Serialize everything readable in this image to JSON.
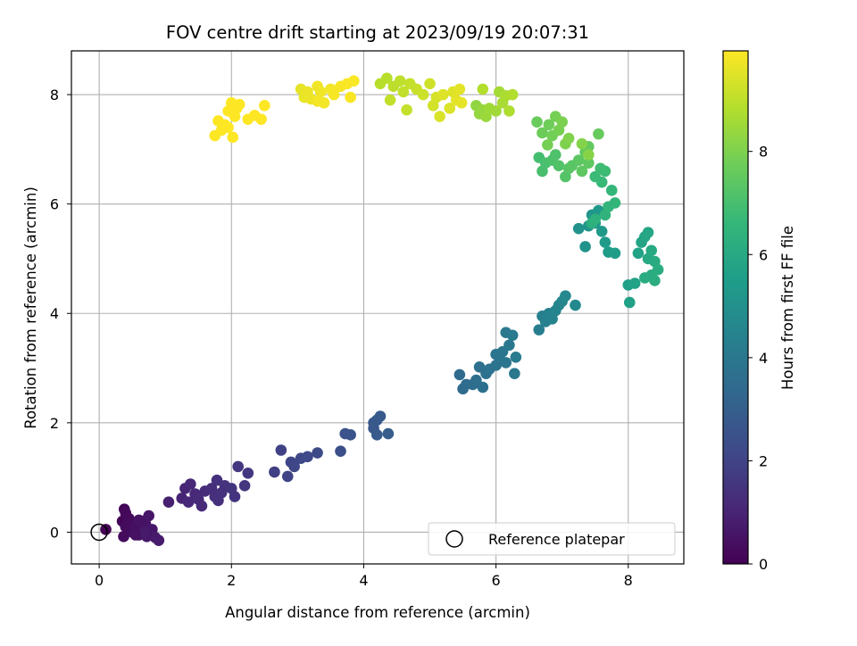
{
  "chart_data": {
    "type": "scatter",
    "title": "FOV centre drift starting at 2023/09/19 20:07:31",
    "xlabel": "Angular distance from reference (arcmin)",
    "ylabel": "Rotation from reference (arcmin)",
    "xlim": [
      -0.42,
      8.84
    ],
    "ylim": [
      -0.58,
      8.8
    ],
    "xticks": [
      0,
      2,
      4,
      6,
      8
    ],
    "yticks": [
      0,
      2,
      4,
      6,
      8
    ],
    "grid": true,
    "colormap": "viridis",
    "colorbar": {
      "label": "Hours from first FF file",
      "range": [
        0,
        9.95
      ],
      "ticks": [
        0,
        2,
        4,
        6,
        8
      ]
    },
    "legend": {
      "position": "lower-right",
      "entries": [
        {
          "label": "Reference platepar",
          "marker": "open-circle"
        }
      ]
    },
    "reference_point": {
      "x": 0,
      "y": 0
    },
    "series": [
      {
        "columns": [
          "x",
          "y",
          "hours"
        ],
        "points": [
          [
            0.1,
            0.05,
            0.0
          ],
          [
            0.35,
            0.2,
            0.1
          ],
          [
            0.38,
            0.42,
            0.15
          ],
          [
            0.4,
            0.35,
            0.2
          ],
          [
            0.45,
            0.25,
            0.25
          ],
          [
            0.4,
            0.1,
            0.3
          ],
          [
            0.37,
            -0.08,
            0.3
          ],
          [
            0.5,
            0.0,
            0.35
          ],
          [
            0.55,
            0.1,
            0.4
          ],
          [
            0.6,
            -0.05,
            0.45
          ],
          [
            0.65,
            0.2,
            0.5
          ],
          [
            0.7,
            0.15,
            0.55
          ],
          [
            0.75,
            0.3,
            0.6
          ],
          [
            0.8,
            0.05,
            0.6
          ],
          [
            0.72,
            -0.08,
            0.65
          ],
          [
            0.85,
            -0.1,
            0.7
          ],
          [
            0.9,
            -0.15,
            0.75
          ],
          [
            0.68,
            0.0,
            0.7
          ],
          [
            0.6,
            0.22,
            0.5
          ],
          [
            0.55,
            -0.05,
            0.45
          ],
          [
            1.05,
            0.55,
            0.9
          ],
          [
            1.25,
            0.62,
            1.0
          ],
          [
            1.3,
            0.8,
            1.05
          ],
          [
            1.38,
            0.88,
            1.1
          ],
          [
            1.35,
            0.55,
            1.1
          ],
          [
            1.45,
            0.7,
            1.15
          ],
          [
            1.5,
            0.6,
            1.2
          ],
          [
            1.55,
            0.48,
            1.2
          ],
          [
            1.6,
            0.75,
            1.25
          ],
          [
            1.7,
            0.8,
            1.3
          ],
          [
            1.75,
            0.65,
            1.35
          ],
          [
            1.8,
            0.58,
            1.35
          ],
          [
            1.78,
            0.95,
            1.4
          ],
          [
            1.9,
            0.85,
            1.45
          ],
          [
            2.0,
            0.8,
            1.5
          ],
          [
            2.05,
            0.65,
            1.5
          ],
          [
            2.1,
            1.2,
            1.55
          ],
          [
            2.2,
            0.85,
            1.6
          ],
          [
            2.25,
            1.08,
            1.6
          ],
          [
            1.85,
            0.72,
            1.4
          ],
          [
            2.65,
            1.1,
            1.9
          ],
          [
            2.75,
            1.5,
            1.95
          ],
          [
            2.85,
            1.02,
            2.0
          ],
          [
            2.9,
            1.28,
            2.05
          ],
          [
            2.95,
            1.2,
            2.1
          ],
          [
            3.05,
            1.35,
            2.15
          ],
          [
            3.15,
            1.38,
            2.2
          ],
          [
            3.3,
            1.45,
            2.25
          ],
          [
            3.65,
            1.48,
            2.4
          ],
          [
            3.72,
            1.8,
            2.5
          ],
          [
            3.8,
            1.78,
            2.55
          ],
          [
            4.15,
            1.9,
            2.7
          ],
          [
            4.2,
            2.05,
            2.75
          ],
          [
            4.25,
            2.12,
            2.8
          ],
          [
            4.2,
            1.78,
            2.85
          ],
          [
            4.37,
            1.8,
            2.9
          ],
          [
            4.15,
            2.0,
            2.75
          ],
          [
            5.45,
            2.88,
            3.4
          ],
          [
            5.5,
            2.62,
            3.45
          ],
          [
            5.55,
            2.7,
            3.5
          ],
          [
            5.65,
            2.7,
            3.55
          ],
          [
            5.7,
            2.78,
            3.6
          ],
          [
            5.75,
            3.02,
            3.65
          ],
          [
            5.8,
            2.65,
            3.6
          ],
          [
            5.85,
            2.9,
            3.7
          ],
          [
            5.9,
            2.98,
            3.75
          ],
          [
            6.0,
            3.05,
            3.8
          ],
          [
            6.05,
            3.2,
            3.85
          ],
          [
            6.1,
            3.3,
            3.9
          ],
          [
            6.15,
            3.1,
            3.9
          ],
          [
            6.2,
            3.42,
            4.0
          ],
          [
            6.15,
            3.65,
            4.05
          ],
          [
            6.25,
            3.6,
            4.1
          ],
          [
            6.3,
            3.2,
            4.1
          ],
          [
            6.28,
            2.9,
            4.0
          ],
          [
            6.0,
            3.25,
            3.85
          ],
          [
            6.65,
            3.7,
            4.25
          ],
          [
            6.7,
            3.95,
            4.3
          ],
          [
            6.75,
            3.85,
            4.35
          ],
          [
            6.8,
            4.0,
            4.4
          ],
          [
            6.85,
            3.9,
            4.45
          ],
          [
            6.9,
            4.05,
            4.5
          ],
          [
            6.95,
            4.15,
            4.55
          ],
          [
            7.0,
            4.22,
            4.6
          ],
          [
            7.05,
            4.32,
            4.65
          ],
          [
            7.2,
            4.15,
            4.7
          ],
          [
            7.25,
            5.55,
            5.05
          ],
          [
            7.35,
            5.22,
            5.1
          ],
          [
            7.4,
            5.6,
            5.15
          ],
          [
            7.45,
            5.8,
            5.2
          ],
          [
            7.5,
            5.65,
            5.25
          ],
          [
            7.55,
            5.88,
            5.3
          ],
          [
            7.6,
            5.5,
            5.35
          ],
          [
            7.65,
            5.3,
            5.4
          ],
          [
            7.7,
            5.12,
            5.45
          ],
          [
            7.8,
            5.1,
            5.5
          ],
          [
            8.0,
            4.52,
            5.6
          ],
          [
            8.02,
            4.2,
            5.65
          ],
          [
            8.1,
            4.55,
            5.7
          ],
          [
            8.15,
            5.1,
            5.75
          ],
          [
            8.2,
            5.3,
            5.8
          ],
          [
            8.25,
            5.4,
            5.85
          ],
          [
            8.3,
            5.48,
            5.9
          ],
          [
            8.3,
            5.0,
            5.95
          ],
          [
            8.35,
            5.15,
            6.0
          ],
          [
            8.4,
            4.95,
            6.05
          ],
          [
            8.35,
            4.7,
            6.1
          ],
          [
            8.45,
            4.8,
            6.15
          ],
          [
            8.4,
            4.6,
            6.2
          ],
          [
            8.25,
            4.65,
            6.1
          ],
          [
            7.45,
            5.65,
            6.3
          ],
          [
            7.5,
            5.72,
            6.35
          ],
          [
            7.65,
            5.8,
            6.4
          ],
          [
            7.7,
            5.95,
            6.5
          ],
          [
            7.8,
            6.02,
            6.55
          ],
          [
            7.75,
            6.25,
            6.6
          ],
          [
            7.6,
            6.4,
            6.7
          ],
          [
            7.5,
            6.5,
            6.75
          ],
          [
            7.65,
            6.6,
            6.8
          ],
          [
            7.58,
            6.65,
            6.85
          ],
          [
            6.65,
            6.85,
            6.95
          ],
          [
            6.7,
            6.6,
            7.0
          ],
          [
            6.75,
            6.75,
            7.05
          ],
          [
            6.85,
            6.8,
            7.1
          ],
          [
            6.9,
            6.9,
            7.15
          ],
          [
            6.95,
            6.7,
            7.2
          ],
          [
            7.05,
            6.5,
            7.25
          ],
          [
            7.1,
            6.65,
            7.3
          ],
          [
            7.15,
            6.7,
            7.35
          ],
          [
            7.25,
            6.8,
            7.4
          ],
          [
            7.3,
            6.6,
            7.45
          ],
          [
            7.35,
            6.95,
            7.5
          ],
          [
            7.4,
            7.05,
            7.55
          ],
          [
            7.55,
            7.28,
            7.6
          ],
          [
            7.4,
            6.75,
            7.45
          ],
          [
            6.62,
            7.5,
            7.65
          ],
          [
            6.7,
            7.3,
            7.7
          ],
          [
            6.8,
            7.45,
            7.75
          ],
          [
            6.85,
            7.25,
            7.8
          ],
          [
            6.9,
            7.6,
            7.85
          ],
          [
            6.95,
            7.35,
            7.9
          ],
          [
            7.0,
            7.5,
            7.95
          ],
          [
            7.05,
            7.1,
            8.0
          ],
          [
            7.1,
            7.2,
            8.05
          ],
          [
            7.3,
            7.1,
            8.1
          ],
          [
            7.4,
            6.9,
            8.15
          ],
          [
            6.78,
            7.08,
            7.85
          ],
          [
            5.7,
            7.8,
            8.3
          ],
          [
            5.75,
            7.65,
            8.35
          ],
          [
            5.8,
            7.72,
            8.4
          ],
          [
            5.85,
            7.6,
            8.45
          ],
          [
            5.9,
            7.75,
            8.5
          ],
          [
            6.0,
            7.7,
            8.55
          ],
          [
            6.05,
            8.05,
            8.6
          ],
          [
            6.1,
            7.85,
            8.65
          ],
          [
            6.15,
            7.98,
            8.7
          ],
          [
            6.2,
            7.7,
            8.75
          ],
          [
            6.25,
            8.0,
            8.8
          ],
          [
            5.8,
            8.1,
            8.85
          ],
          [
            4.35,
            8.3,
            8.9
          ],
          [
            4.45,
            8.15,
            8.95
          ],
          [
            4.55,
            8.25,
            9.0
          ],
          [
            4.6,
            8.05,
            9.05
          ],
          [
            4.65,
            7.72,
            9.1
          ],
          [
            4.7,
            8.2,
            9.1
          ],
          [
            4.8,
            8.1,
            9.15
          ],
          [
            4.9,
            8.0,
            9.2
          ],
          [
            5.0,
            8.2,
            9.25
          ],
          [
            5.05,
            7.8,
            9.3
          ],
          [
            5.1,
            7.95,
            9.35
          ],
          [
            5.15,
            7.6,
            9.4
          ],
          [
            5.2,
            8.0,
            9.45
          ],
          [
            5.3,
            7.75,
            9.45
          ],
          [
            5.35,
            8.05,
            9.5
          ],
          [
            5.4,
            7.9,
            9.55
          ],
          [
            5.45,
            8.1,
            9.55
          ],
          [
            5.48,
            7.85,
            9.6
          ],
          [
            4.25,
            8.2,
            8.9
          ],
          [
            4.4,
            7.9,
            9.05
          ],
          [
            3.05,
            8.1,
            9.6
          ],
          [
            3.1,
            7.95,
            9.65
          ],
          [
            3.15,
            8.05,
            9.7
          ],
          [
            3.2,
            7.92,
            9.7
          ],
          [
            3.3,
            8.15,
            9.75
          ],
          [
            3.35,
            8.05,
            9.75
          ],
          [
            3.4,
            7.85,
            9.8
          ],
          [
            3.5,
            8.1,
            9.8
          ],
          [
            3.55,
            8.0,
            9.85
          ],
          [
            3.65,
            8.15,
            9.85
          ],
          [
            3.75,
            8.2,
            9.9
          ],
          [
            3.85,
            8.25,
            9.9
          ],
          [
            3.8,
            7.95,
            9.88
          ],
          [
            3.3,
            7.88,
            9.78
          ],
          [
            1.75,
            7.25,
            9.95
          ],
          [
            1.8,
            7.52,
            9.95
          ],
          [
            1.85,
            7.35,
            9.95
          ],
          [
            1.9,
            7.45,
            9.95
          ],
          [
            1.95,
            7.7,
            9.95
          ],
          [
            2.0,
            7.85,
            9.95
          ],
          [
            2.05,
            7.6,
            9.95
          ],
          [
            2.08,
            7.75,
            9.95
          ],
          [
            2.12,
            7.82,
            9.95
          ],
          [
            2.02,
            7.22,
            9.95
          ],
          [
            2.25,
            7.55,
            9.95
          ],
          [
            2.35,
            7.62,
            9.95
          ],
          [
            2.45,
            7.55,
            9.95
          ],
          [
            2.5,
            7.8,
            9.95
          ],
          [
            1.95,
            7.4,
            9.95
          ]
        ]
      }
    ]
  }
}
